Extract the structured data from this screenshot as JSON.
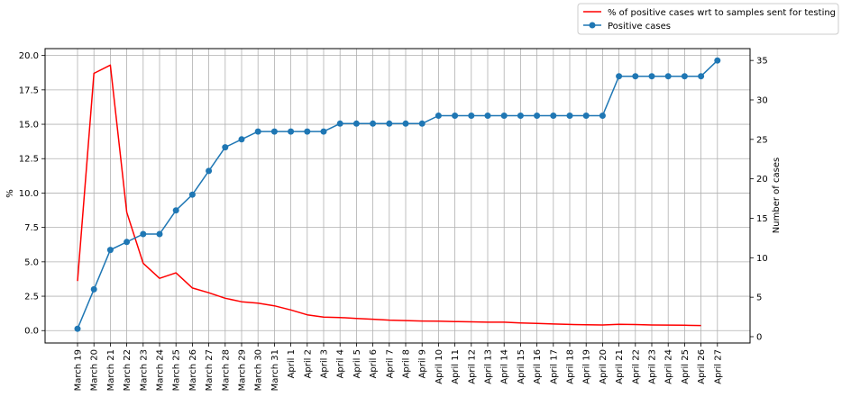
{
  "chart_data": {
    "type": "line",
    "categories": [
      "March 19",
      "March 20",
      "March 21",
      "March 22",
      "March 23",
      "March 24",
      "March 25",
      "March 26",
      "March 27",
      "March 28",
      "March 29",
      "March 30",
      "March 31",
      "April 1",
      "April 2",
      "April 3",
      "April 4",
      "April 5",
      "April 6",
      "April 7",
      "April 8",
      "April 9",
      "April 10",
      "April 11",
      "April 12",
      "April 13",
      "April 14",
      "April 15",
      "April 16",
      "April 17",
      "April 18",
      "April 19",
      "April 20",
      "April 21",
      "April 22",
      "April 23",
      "April 24",
      "April 25",
      "April 26",
      "April 27"
    ],
    "ylabel_left": "%",
    "ylabel_right": "Number of cases",
    "ylim_left": [
      -0.9,
      20.5
    ],
    "ylim_right": [
      -0.8,
      36.5
    ],
    "yticks_left": [
      "0.0",
      "2.5",
      "5.0",
      "7.5",
      "10.0",
      "12.5",
      "15.0",
      "17.5",
      "20.0"
    ],
    "yticks_right": [
      "0",
      "5",
      "10",
      "15",
      "20",
      "25",
      "30",
      "35"
    ],
    "grid": true,
    "legend_position": "top-right",
    "series": [
      {
        "name": "% of positive cases wrt to samples sent for testing",
        "axis": "left",
        "color": "#ff0000",
        "marker": "none",
        "values": [
          3.6,
          18.7,
          19.3,
          8.6,
          4.9,
          3.8,
          4.2,
          3.1,
          2.75,
          2.35,
          2.1,
          2.0,
          1.8,
          1.5,
          1.15,
          0.98,
          0.95,
          0.88,
          0.83,
          0.76,
          0.73,
          0.7,
          0.69,
          0.66,
          0.64,
          0.61,
          0.61,
          0.56,
          0.52,
          0.48,
          0.45,
          0.42,
          0.41,
          0.46,
          0.44,
          0.41,
          0.4,
          0.39,
          0.37,
          null
        ]
      },
      {
        "name": "Positive cases",
        "axis": "right",
        "color": "#1f77b4",
        "marker": "circle",
        "values": [
          1,
          6,
          11,
          12,
          13,
          13,
          16,
          18,
          21,
          24,
          25,
          26,
          26,
          26,
          26,
          26,
          27,
          27,
          27,
          27,
          27,
          27,
          28,
          28,
          28,
          28,
          28,
          28,
          28,
          28,
          28,
          28,
          28,
          33,
          33,
          33,
          33,
          33,
          33,
          35
        ]
      }
    ]
  }
}
